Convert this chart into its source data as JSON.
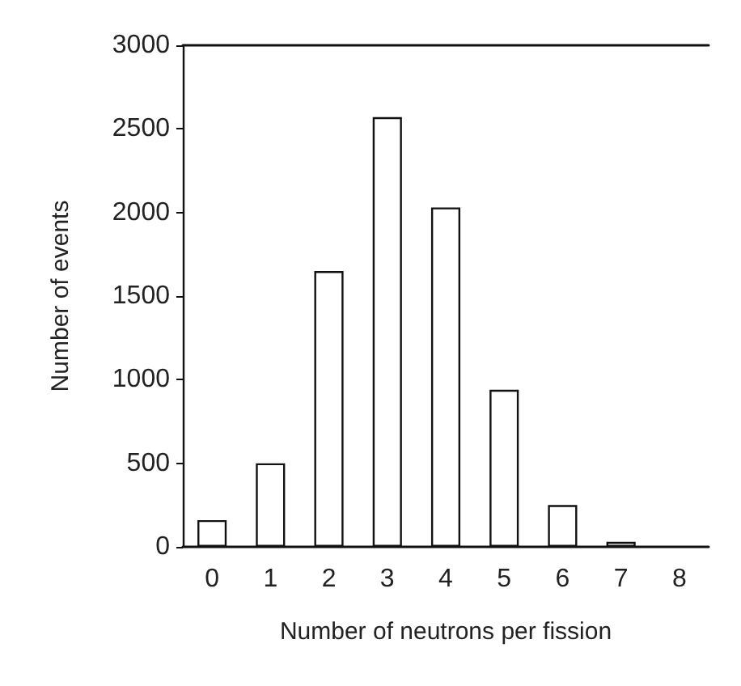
{
  "chart_data": {
    "type": "bar",
    "xlabel": "Number of neutrons per fission",
    "ylabel": "Number of events",
    "categories": [
      "0",
      "1",
      "2",
      "3",
      "4",
      "5",
      "6",
      "7",
      "8"
    ],
    "values": [
      160,
      500,
      1650,
      2570,
      2030,
      940,
      250,
      30,
      null
    ],
    "color": "#ffffff",
    "ylim": [
      0,
      3000
    ],
    "yticks": [
      0,
      500,
      1000,
      1500,
      2000,
      2500,
      3000
    ],
    "grid": false
  }
}
